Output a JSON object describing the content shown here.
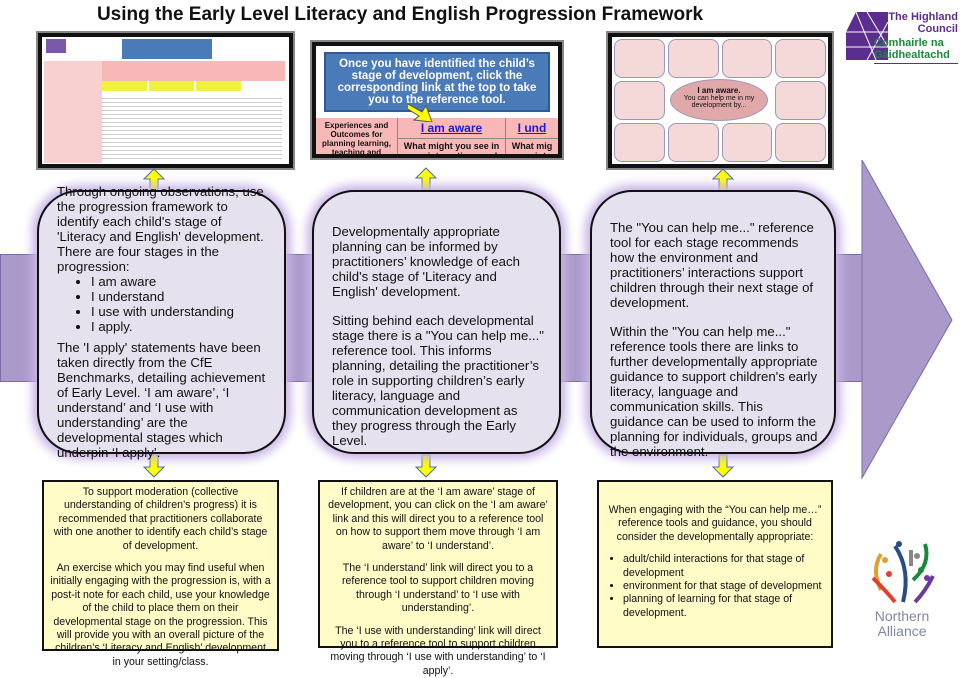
{
  "title": "Using the Early Level Literacy and English Progression Framework",
  "logos": {
    "highland": {
      "line1": "The Highland",
      "line2": "Council",
      "line3": "Comhairle na",
      "line4": "Gàidhealtachd",
      "purple": "#5b2d8e",
      "green": "#1a8a3a"
    },
    "northern": {
      "line1": "Northern",
      "line2": "Alliance"
    }
  },
  "thumb2": {
    "banner": "Once you have identified the child’s stage of development, click the corresponding link at the top to take you to the reference tool.",
    "col1": "Experiences and Outcomes for planning learning, teaching and assessment",
    "link1": "I am aware",
    "link2": "I und",
    "question1": "What might you see in your interactions and observations?",
    "question2": "What mig your inte obser"
  },
  "thumb3": {
    "center_title": "I am aware.",
    "center_text": "You can help me in my development by..."
  },
  "boxes": [
    {
      "p1": "Through ongoing observations, use the progression framework to identify each child's stage of 'Literacy and English' development. There are four stages in the progression:",
      "bullets": [
        "I am aware",
        "I understand",
        "I use with understanding",
        "I apply."
      ],
      "p2": "The 'I apply' statements have been taken directly from the CfE Benchmarks, detailing achievement of Early Level. ‘I am aware’, ‘I understand’ and ‘I use with understanding’ are the developmental stages which underpin ‘I apply’."
    },
    {
      "p1": "Developmentally appropriate planning can be informed by practitioners’ knowledge of each child's stage of 'Literacy and English' development.",
      "p2": "Sitting behind each developmental stage there is a \"You can help me...\" reference tool. This informs planning, detailing the practitioner’s role in supporting children’s early literacy, language and communication development as they progress through the Early Level."
    },
    {
      "p1": "The \"You can help me...\" reference tool for each stage recommends how the environment and practitioners’ interactions support children through their next stage of development.",
      "p2": "Within the \"You can help me...\" reference tools there are links to further developmentally appropriate guidance to support children's early literacy, language and communication skills. This guidance can be used to inform the planning for individuals, groups and the environment."
    }
  ],
  "notes": [
    {
      "p1": "To support moderation (collective understanding of children’s progress) it is recommended that practitioners collaborate with one another to identify each child’s stage of development.",
      "p2": "An exercise which you may find useful when initially engaging with the progression is, with a post-it note for each child, use your knowledge of the child to place them on their developmental stage on the progression. This will provide you with an overall picture of the children’s ‘Literacy and English’ development in your setting/class."
    },
    {
      "p1": "If children are at the ‘I am aware’ stage of development, you can click on the ‘I am aware’ link and this will direct you to a reference tool on how to support them move through ‘I am aware’ to ‘I understand’.",
      "p2": "The ‘I understand’ link will direct you to a reference tool to support children moving through ‘I understand’ to ‘I use with understanding’.",
      "p3": "The ‘I use with understanding’ link will direct you to a reference tool to support children moving through ‘I use with understanding’ to ‘I apply’."
    },
    {
      "p1": "When engaging with the “You can help me…” reference tools and guidance, you should consider the developmentally appropriate:",
      "bullets": [
        "adult/child interactions for that stage of development",
        "environment for that stage of development",
        "planning of learning for that stage of development."
      ]
    }
  ],
  "colors": {
    "band": "#ab9ac9",
    "box": "#e6e1ee",
    "note": "#fffcc8",
    "arrow": "#ffff00"
  }
}
